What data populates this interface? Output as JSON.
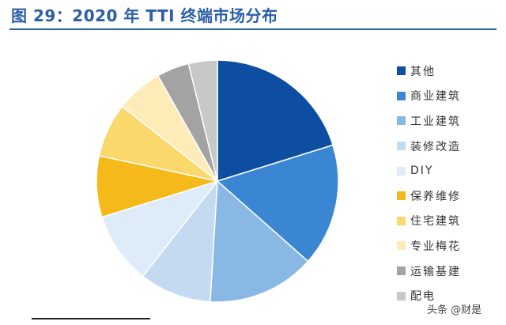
{
  "title": "图 29：2020 年 TTI 终端市场分布",
  "watermark": "头条 @财是",
  "chart_data": {
    "type": "pie",
    "title": "",
    "legend_position": "right",
    "start_angle_deg": 0,
    "direction": "clockwise",
    "slices": [
      {
        "label": "其他",
        "value": 21,
        "color": "#0d4ea3"
      },
      {
        "label": "商业建筑",
        "value": 17,
        "color": "#3a86d2"
      },
      {
        "label": "工业建筑",
        "value": 15,
        "color": "#8ab8e5"
      },
      {
        "label": "装修改造",
        "value": 10,
        "color": "#c4daf1"
      },
      {
        "label": "DIY",
        "value": 10,
        "color": "#deebf8"
      },
      {
        "label": "保养维修",
        "value": 8.5,
        "color": "#f5b919"
      },
      {
        "label": "住宅建筑",
        "value": 7.5,
        "color": "#fbd86b"
      },
      {
        "label": "专业梅花",
        "value": 6.5,
        "color": "#fdebb8"
      },
      {
        "label": "运输基建",
        "value": 4.5,
        "color": "#a3a3a3"
      },
      {
        "label": "配电",
        "value": 4,
        "color": "#c8c8c8"
      }
    ]
  }
}
